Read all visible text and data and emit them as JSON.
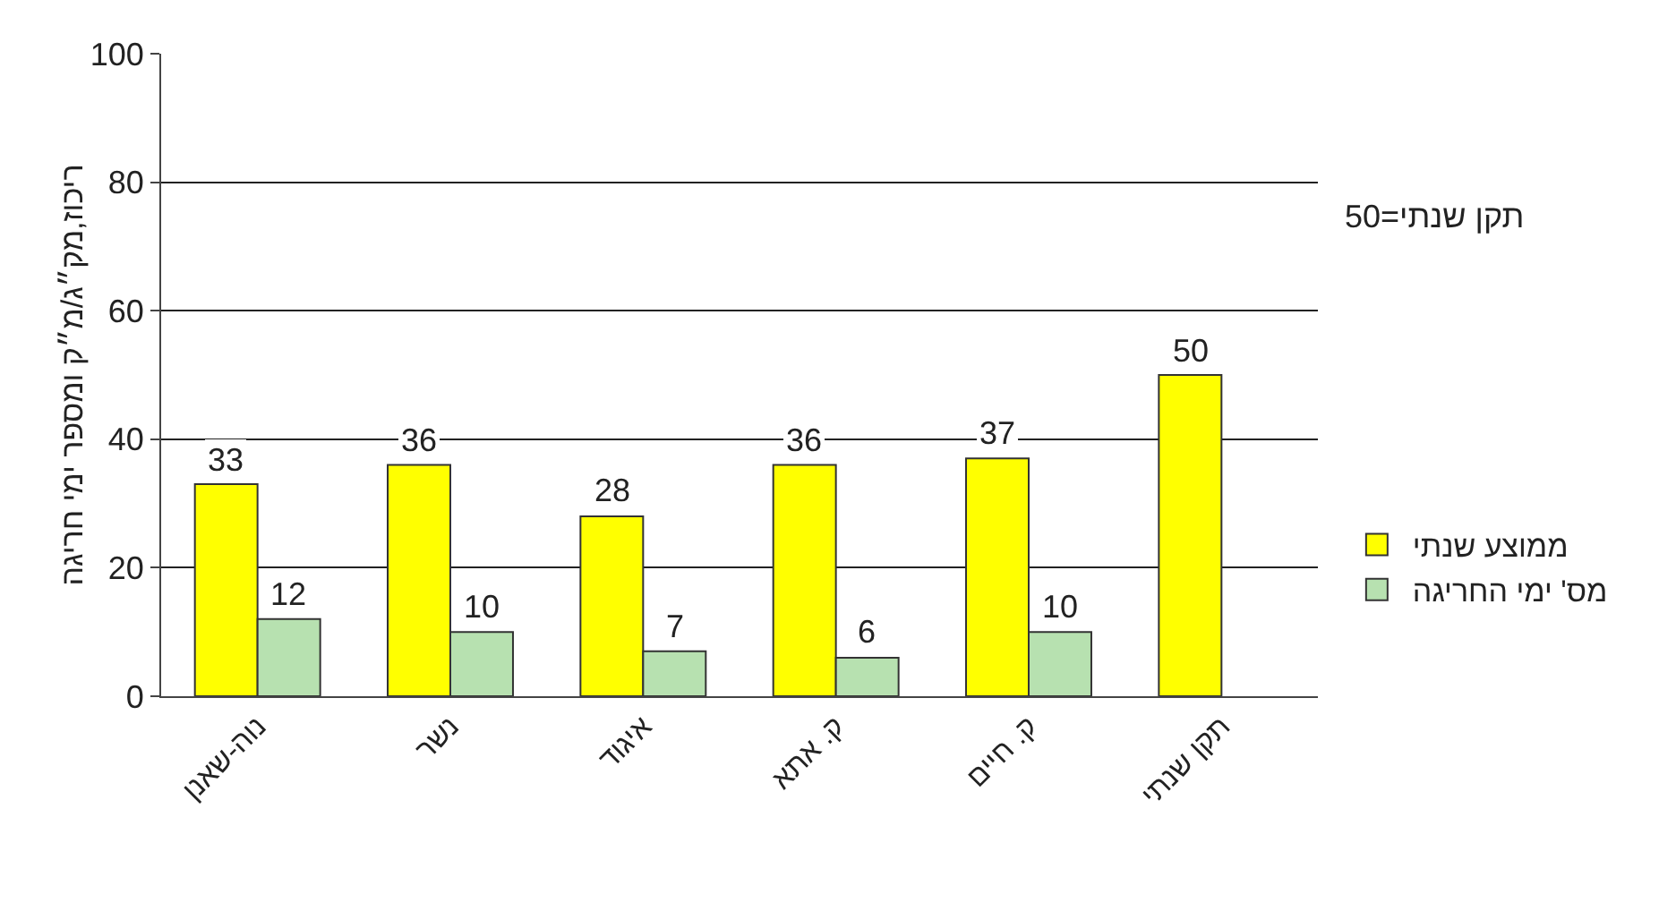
{
  "chart_data": {
    "type": "bar",
    "ylabel": "ריכוז,מק״ג/מ״ק ומספר ימי חריגה",
    "categories": [
      "נוה-שאנן",
      "נשר",
      "איגוד",
      "ק. אתא",
      "ק. חיים",
      "תקן שנתי"
    ],
    "series": [
      {
        "name": "ממוצע שנתי",
        "color": "#ffff00",
        "values": [
          33,
          36,
          28,
          36,
          37,
          50
        ]
      },
      {
        "name": "מס' ימי החריגה",
        "color": "#b7e1b0",
        "values": [
          12,
          10,
          7,
          6,
          10,
          null
        ]
      }
    ],
    "ylim": [
      0,
      100
    ],
    "yticks": [
      0,
      20,
      40,
      60,
      80,
      100
    ],
    "grid": "y",
    "legend": "right",
    "data_labels": true,
    "annotations": [
      "תקן שנתי=50"
    ]
  }
}
